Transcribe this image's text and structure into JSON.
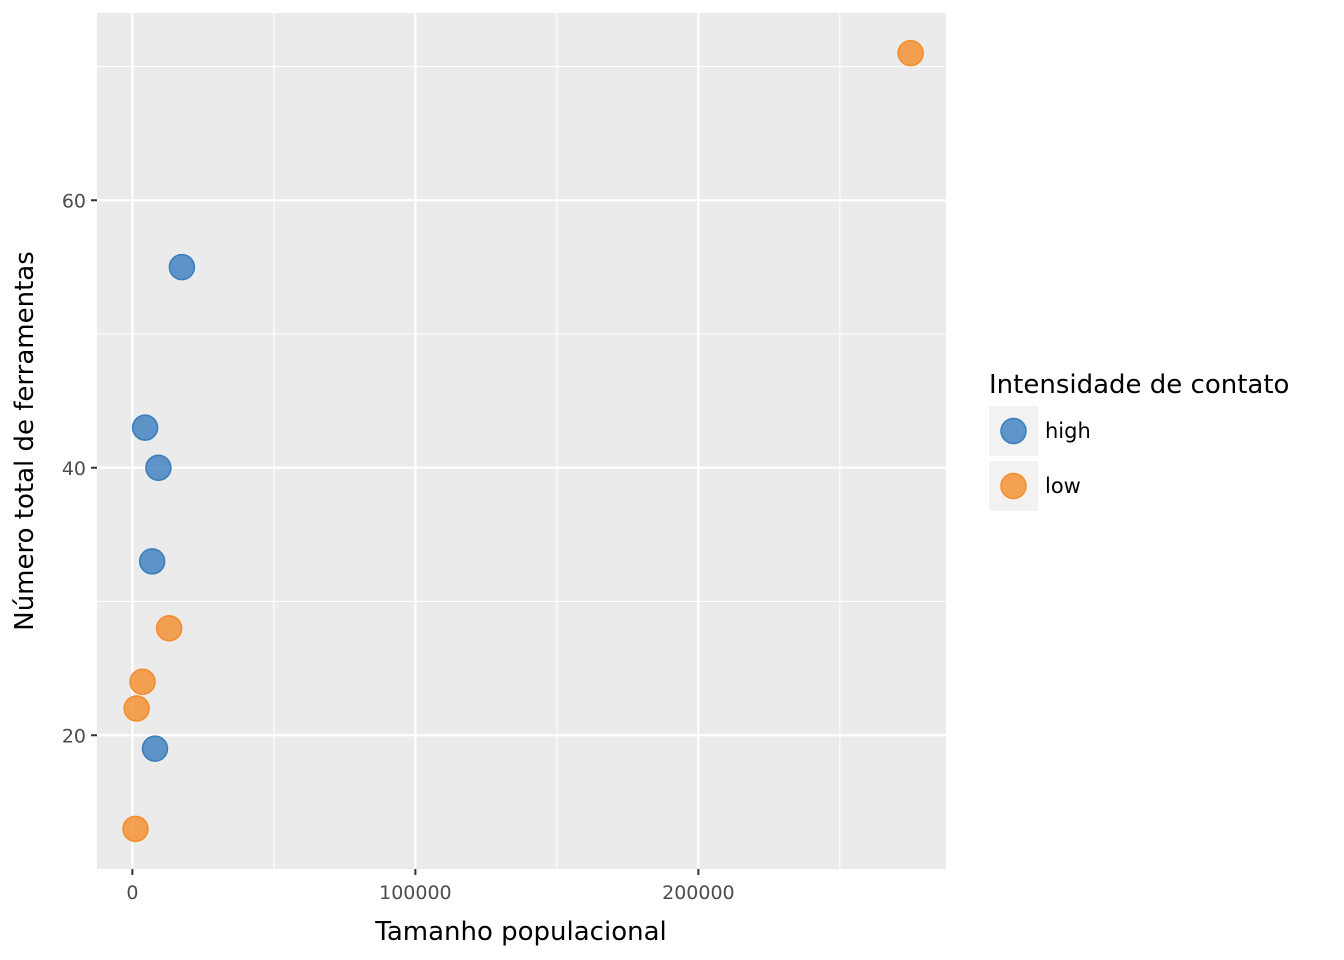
{
  "chart_data": {
    "type": "scatter",
    "title": "",
    "xlabel": "Tamanho populacional",
    "ylabel": "Número total de ferramentas",
    "xlim": [
      -12500,
      287500
    ],
    "ylim": [
      10,
      74
    ],
    "x_ticks": [
      0,
      100000,
      200000
    ],
    "x_tick_labels": [
      "0",
      "100000",
      "200000"
    ],
    "x_minor_ticks": [
      50000,
      150000,
      250000
    ],
    "y_ticks": [
      20,
      40,
      60
    ],
    "y_tick_labels": [
      "20",
      "40",
      "60"
    ],
    "y_minor_ticks": [
      30,
      50,
      70
    ],
    "grid": true,
    "legend": {
      "title": "Intensidade de contato",
      "position": "right",
      "entries": [
        {
          "label": "high",
          "color": "#3a7dbd"
        },
        {
          "label": "low",
          "color": "#f58c2c"
        }
      ]
    },
    "colors": {
      "panel_background": "#ebebeb",
      "grid": "#ffffff",
      "high": "#3a7dbd",
      "low": "#f58c2c"
    },
    "series": [
      {
        "name": "high",
        "color": "#3a7dbd",
        "points": [
          {
            "x": 4500,
            "y": 43
          },
          {
            "x": 8000,
            "y": 19
          },
          {
            "x": 7000,
            "y": 33
          },
          {
            "x": 9200,
            "y": 40
          },
          {
            "x": 17500,
            "y": 55
          }
        ]
      },
      {
        "name": "low",
        "color": "#f58c2c",
        "points": [
          {
            "x": 1100,
            "y": 13
          },
          {
            "x": 1500,
            "y": 22
          },
          {
            "x": 3600,
            "y": 24
          },
          {
            "x": 13000,
            "y": 28
          },
          {
            "x": 275000,
            "y": 71
          }
        ]
      }
    ]
  }
}
